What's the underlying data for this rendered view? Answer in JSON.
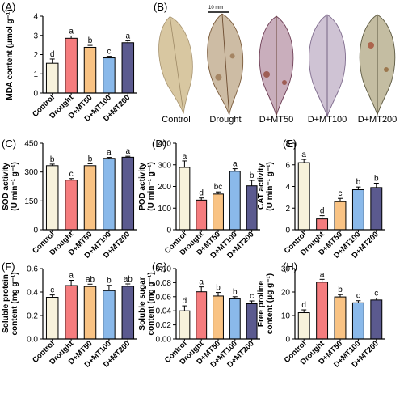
{
  "colors": {
    "Control": "#f7f2dc",
    "Drought": "#f57c7e",
    "D+MT50": "#f9c384",
    "D+MT100": "#8ab9ea",
    "D+MT200": "#5b5a8f"
  },
  "panelB": {
    "letter": "(B)",
    "scale_label": "10 mm",
    "captions": [
      "Control",
      "Drought",
      "D+MT50",
      "D+MT100",
      "D+MT200"
    ]
  },
  "chart_data": [
    {
      "id": "A",
      "letter": "(A)",
      "type": "bar",
      "ylabel": "MDA content (μmol g⁻¹)",
      "ylim": [
        0,
        4
      ],
      "yticks": [
        0,
        1,
        2,
        3,
        4
      ],
      "categories": [
        "Control",
        "Drought",
        "D+MT50",
        "D+MT100",
        "D+MT200"
      ],
      "values": [
        1.55,
        2.85,
        2.38,
        1.83,
        2.62
      ],
      "errors": [
        0.22,
        0.12,
        0.1,
        0.08,
        0.1
      ],
      "letters": [
        "d",
        "a",
        "b",
        "c",
        "a"
      ]
    },
    {
      "id": "C",
      "letter": "(C)",
      "type": "bar",
      "ylabel": "SOD activity (U min⁻¹ g⁻¹)",
      "ylim": [
        0,
        450
      ],
      "yticks": [
        0,
        150,
        300,
        450
      ],
      "categories": [
        "Control",
        "Drought",
        "D+MT50",
        "D+MT100",
        "D+MT200"
      ],
      "values": [
        333,
        258,
        333,
        371,
        377
      ],
      "errors": [
        8,
        8,
        10,
        5,
        5
      ],
      "letters": [
        "b",
        "c",
        "b",
        "a",
        "a"
      ]
    },
    {
      "id": "D",
      "letter": "(D)",
      "type": "bar",
      "ylabel": "POD activity (U min⁻¹ g⁻¹)",
      "ylim": [
        0,
        400
      ],
      "yticks": [
        0,
        100,
        200,
        300,
        400
      ],
      "categories": [
        "Control",
        "Drought",
        "D+MT50",
        "D+MT100",
        "D+MT200"
      ],
      "values": [
        288,
        137,
        165,
        270,
        203
      ],
      "errors": [
        30,
        10,
        10,
        12,
        25
      ],
      "letters": [
        "a",
        "d",
        "bc",
        "a",
        "b"
      ]
    },
    {
      "id": "E",
      "letter": "(E)",
      "type": "bar",
      "ylabel": "CAT activity (U min⁻¹ g⁻¹)",
      "ylim": [
        0,
        8
      ],
      "yticks": [
        0,
        2,
        4,
        6,
        8
      ],
      "categories": [
        "Control",
        "Drought",
        "D+MT50",
        "D+MT100",
        "D+MT200"
      ],
      "values": [
        6.2,
        1.0,
        2.6,
        3.7,
        3.9
      ],
      "errors": [
        0.3,
        0.3,
        0.3,
        0.25,
        0.4
      ],
      "letters": [
        "a",
        "d",
        "c",
        "b",
        "b"
      ]
    },
    {
      "id": "F",
      "letter": "(F)",
      "type": "bar",
      "ylabel": "Soluble protein content (mg g⁻¹)",
      "ylim": [
        0,
        0.6
      ],
      "yticks": [
        0.0,
        0.2,
        0.4,
        0.6
      ],
      "categories": [
        "Control",
        "Drought",
        "D+MT50",
        "D+MT100",
        "D+MT200"
      ],
      "values": [
        0.355,
        0.455,
        0.447,
        0.412,
        0.449
      ],
      "errors": [
        0.02,
        0.045,
        0.02,
        0.045,
        0.02
      ],
      "letters": [
        "c",
        "a",
        "ab",
        "b",
        "ab"
      ]
    },
    {
      "id": "G",
      "letter": "(G)",
      "type": "bar",
      "ylabel": "Soluble sugar content (mg g⁻¹)",
      "ylim": [
        0,
        0.1
      ],
      "yticks": [
        0.0,
        0.02,
        0.04,
        0.06,
        0.08,
        0.1
      ],
      "categories": [
        "Control",
        "Drought",
        "D+MT50",
        "D+MT100",
        "D+MT200"
      ],
      "values": [
        0.04,
        0.067,
        0.061,
        0.057,
        0.05
      ],
      "errors": [
        0.007,
        0.007,
        0.005,
        0.003,
        0.004
      ],
      "letters": [
        "d",
        "a",
        "b",
        "b",
        "c"
      ]
    },
    {
      "id": "H",
      "letter": "(H)",
      "type": "bar",
      "ylabel": "Free proline content (μg g⁻¹)",
      "ylim": [
        0,
        30
      ],
      "yticks": [
        0,
        10,
        20,
        30
      ],
      "categories": [
        "Control",
        "Drought",
        "D+MT50",
        "D+MT100",
        "D+MT200"
      ],
      "values": [
        11.2,
        24.2,
        17.9,
        15.4,
        16.6
      ],
      "errors": [
        1.2,
        1.2,
        1.0,
        0.9,
        0.8
      ],
      "letters": [
        "d",
        "a",
        "b",
        "c",
        "c"
      ]
    }
  ]
}
